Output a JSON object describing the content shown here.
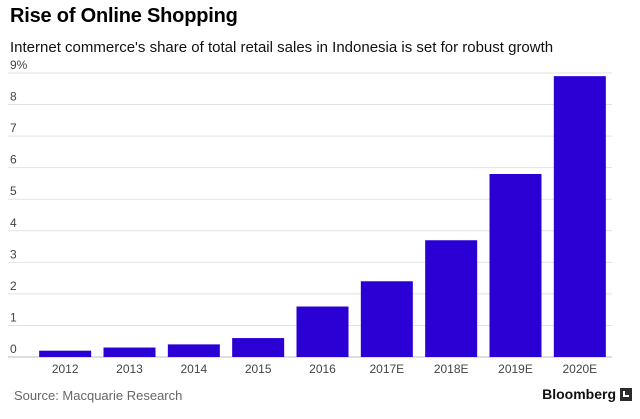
{
  "header": {
    "title": "Rise of Online Shopping",
    "subtitle": "Internet commerce's share of total retail sales in Indonesia is set for robust growth"
  },
  "footer": {
    "source": "Source: Macquarie Research",
    "brand": "Bloomberg",
    "brand_icon": "bloomberg-logo-icon"
  },
  "chart_data": {
    "type": "bar",
    "title": "Rise of Online Shopping",
    "subtitle": "Internet commerce's share of total retail sales in Indonesia is set for robust growth",
    "categories": [
      "2012",
      "2013",
      "2014",
      "2015",
      "2016",
      "2017E",
      "2018E",
      "2019E",
      "2020E"
    ],
    "values": [
      0.2,
      0.3,
      0.4,
      0.6,
      1.6,
      2.4,
      3.7,
      5.8,
      8.9
    ],
    "ylim": [
      0,
      9
    ],
    "yticks": [
      "0",
      "1",
      "2",
      "3",
      "4",
      "5",
      "6",
      "7",
      "8",
      "9%"
    ],
    "xlabel": "",
    "ylabel": "",
    "bar_color": "#2a00d5",
    "grid": true,
    "grid_color": "#e2e2e2"
  }
}
